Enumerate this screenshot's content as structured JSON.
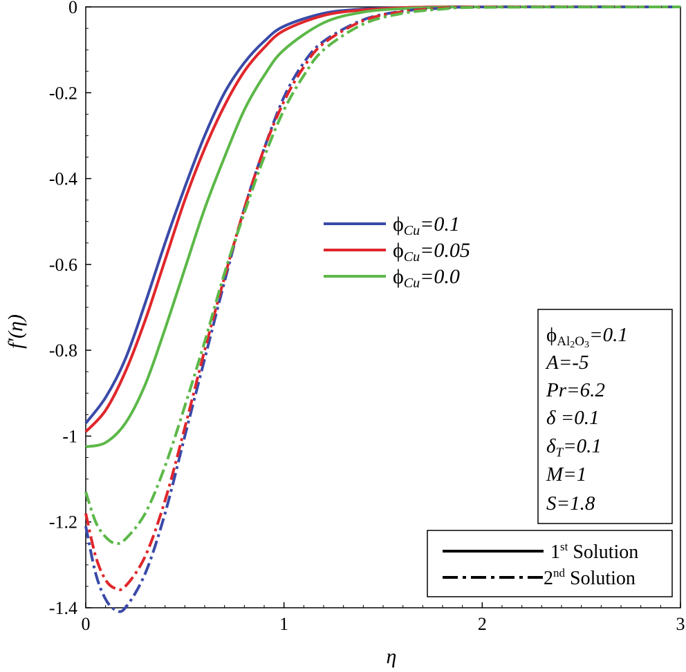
{
  "chart_data": {
    "type": "line",
    "title": "",
    "xlabel": "η",
    "ylabel": "f′(η)",
    "xlim": [
      0,
      3
    ],
    "ylim": [
      -1.4,
      0
    ],
    "x_ticks": [
      "0",
      "1",
      "2",
      "3"
    ],
    "y_ticks": [
      "0",
      "-0.2",
      "-0.4",
      "-0.6",
      "-0.8",
      "-1",
      "-1.2",
      "-1.4"
    ],
    "x_tick_values": [
      0,
      1,
      2,
      3
    ],
    "y_tick_values": [
      0,
      -0.2,
      -0.4,
      -0.6,
      -0.8,
      -1,
      -1.2,
      -1.4
    ],
    "series": [
      {
        "name": "ϕCu=0.1, 1st Solution",
        "color": "#3a4aa8",
        "style": "solid",
        "x": [
          0,
          0.1,
          0.2,
          0.3,
          0.4,
          0.5,
          0.6,
          0.7,
          0.8,
          0.9,
          1.0,
          1.2,
          1.4,
          1.6,
          1.8,
          2.0,
          3.0
        ],
        "y": [
          -0.97,
          -0.91,
          -0.82,
          -0.69,
          -0.55,
          -0.42,
          -0.3,
          -0.2,
          -0.13,
          -0.08,
          -0.045,
          -0.015,
          -0.005,
          -0.002,
          0,
          0,
          0
        ]
      },
      {
        "name": "ϕCu=0.05, 1st Solution",
        "color": "#e0262b",
        "style": "solid",
        "x": [
          0,
          0.1,
          0.2,
          0.3,
          0.4,
          0.5,
          0.6,
          0.7,
          0.8,
          0.9,
          1.0,
          1.2,
          1.4,
          1.6,
          1.8,
          2.0,
          3.0
        ],
        "y": [
          -0.99,
          -0.94,
          -0.85,
          -0.73,
          -0.59,
          -0.45,
          -0.33,
          -0.23,
          -0.15,
          -0.095,
          -0.055,
          -0.02,
          -0.007,
          -0.002,
          0,
          0,
          0
        ]
      },
      {
        "name": "ϕCu=0.0, 1st Solution",
        "color": "#5cb848",
        "style": "solid",
        "x": [
          0,
          0.1,
          0.2,
          0.3,
          0.4,
          0.5,
          0.6,
          0.7,
          0.8,
          0.9,
          1.0,
          1.2,
          1.4,
          1.6,
          1.8,
          2.0,
          3.0
        ],
        "y": [
          -1.025,
          -1.015,
          -0.97,
          -0.88,
          -0.75,
          -0.61,
          -0.47,
          -0.35,
          -0.24,
          -0.16,
          -0.1,
          -0.037,
          -0.012,
          -0.004,
          -0.001,
          0,
          0
        ]
      },
      {
        "name": "ϕCu=0.1, 2nd Solution",
        "color": "#3a4aa8",
        "style": "dashdot",
        "x": [
          0,
          0.05,
          0.1,
          0.15,
          0.2,
          0.3,
          0.4,
          0.5,
          0.6,
          0.7,
          0.8,
          0.9,
          1.0,
          1.1,
          1.2,
          1.4,
          1.6,
          1.8,
          2.0,
          3.0
        ],
        "y": [
          -1.21,
          -1.32,
          -1.38,
          -1.405,
          -1.4,
          -1.32,
          -1.18,
          -1.0,
          -0.82,
          -0.64,
          -0.47,
          -0.33,
          -0.21,
          -0.13,
          -0.08,
          -0.03,
          -0.01,
          -0.003,
          0,
          0
        ]
      },
      {
        "name": "ϕCu=0.05, 2nd Solution",
        "color": "#e0262b",
        "style": "dashdot",
        "x": [
          0,
          0.05,
          0.1,
          0.15,
          0.2,
          0.3,
          0.4,
          0.5,
          0.6,
          0.7,
          0.8,
          0.9,
          1.0,
          1.1,
          1.2,
          1.4,
          1.6,
          1.8,
          2.0,
          3.0
        ],
        "y": [
          -1.18,
          -1.28,
          -1.335,
          -1.355,
          -1.35,
          -1.28,
          -1.15,
          -0.98,
          -0.8,
          -0.63,
          -0.47,
          -0.33,
          -0.22,
          -0.14,
          -0.085,
          -0.032,
          -0.011,
          -0.003,
          0,
          0
        ]
      },
      {
        "name": "ϕCu=0.0, 2nd Solution",
        "color": "#5cb848",
        "style": "dashdot",
        "x": [
          0,
          0.05,
          0.1,
          0.15,
          0.2,
          0.3,
          0.4,
          0.5,
          0.6,
          0.7,
          0.8,
          0.9,
          1.0,
          1.1,
          1.2,
          1.4,
          1.6,
          1.8,
          2.0,
          3.0
        ],
        "y": [
          -1.13,
          -1.2,
          -1.235,
          -1.25,
          -1.24,
          -1.18,
          -1.07,
          -0.93,
          -0.78,
          -0.62,
          -0.48,
          -0.35,
          -0.24,
          -0.16,
          -0.1,
          -0.04,
          -0.015,
          -0.005,
          -0.001,
          0
        ]
      }
    ],
    "legend_colors": {
      "items": [
        {
          "symbol": "ϕ",
          "subscript": "Cu",
          "value": "=0.1",
          "color": "#3a4aa8"
        },
        {
          "symbol": "ϕ",
          "subscript": "Cu",
          "value": "=0.05",
          "color": "#e0262b"
        },
        {
          "symbol": "ϕ",
          "subscript": "Cu",
          "value": "=0.0",
          "color": "#5cb848"
        }
      ]
    },
    "parameters": {
      "phi_al_symbol": "ϕ",
      "phi_al_sub_al": "Al",
      "phi_al_sub_2": "2",
      "phi_al_sub_o": "O",
      "phi_al_sub_3": "3",
      "phi_al_value": "=0.1",
      "A": "A=-5",
      "Pr": "Pr=6.2",
      "delta": "δ =0.1",
      "deltaT_symbol": "δ",
      "deltaT_sub": "T",
      "deltaT_value": "=0.1",
      "M": "M=1",
      "S": "S=1.8"
    },
    "solution_legend": {
      "first_num": "1",
      "first_sup": "st",
      "first_label": " Solution",
      "second_num": "2",
      "second_sup": "nd",
      "second_label": " Solution"
    }
  }
}
